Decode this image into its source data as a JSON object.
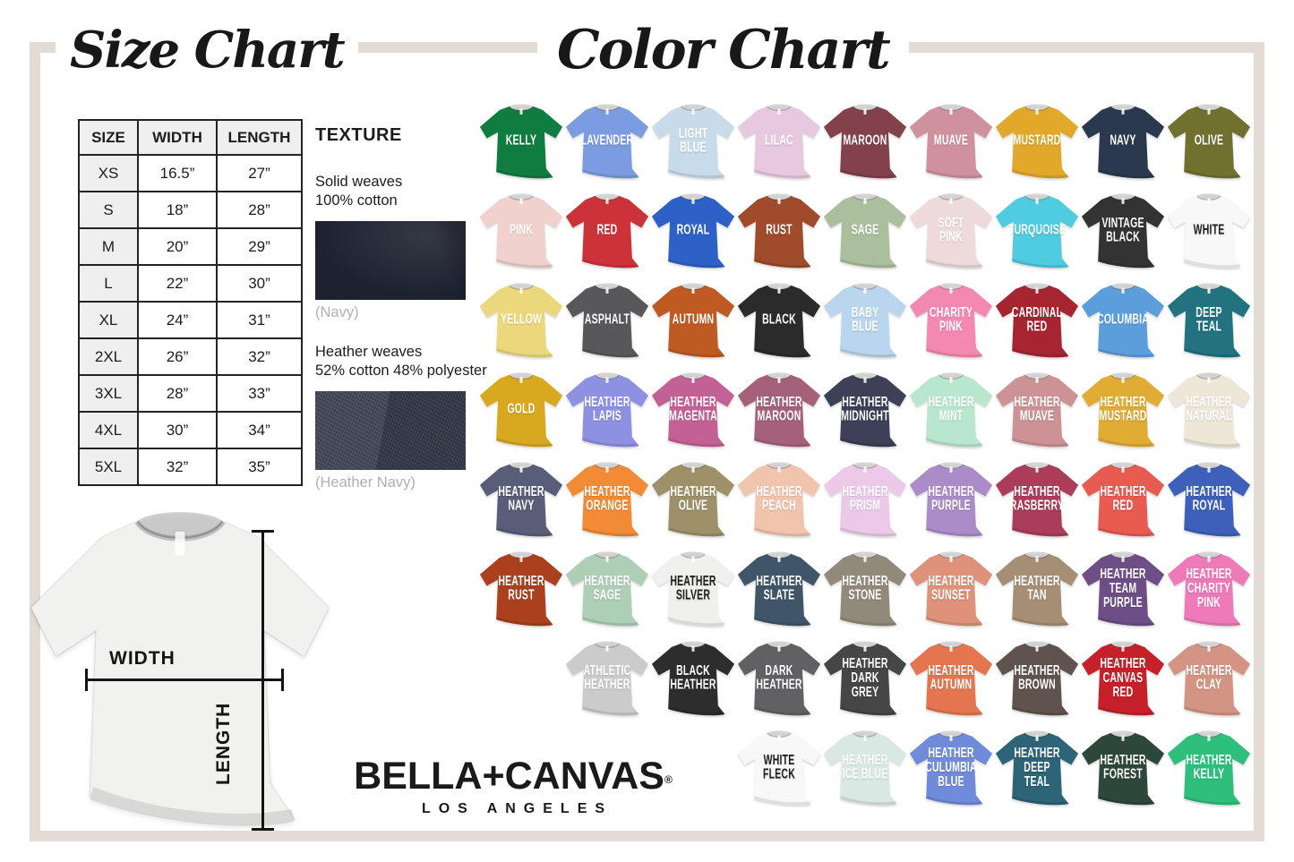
{
  "titles": {
    "size_chart": "Size Chart",
    "color_chart": "Color Chart"
  },
  "frame_color": "#e5dbd5",
  "size_table": {
    "headers": [
      "SIZE",
      "WIDTH",
      "LENGTH"
    ],
    "rows": [
      {
        "size": "XS",
        "width": "16.5”",
        "length": "27”"
      },
      {
        "size": "S",
        "width": "18”",
        "length": "28”"
      },
      {
        "size": "M",
        "width": "20”",
        "length": "29”"
      },
      {
        "size": "L",
        "width": "22”",
        "length": "30”"
      },
      {
        "size": "XL",
        "width": "24”",
        "length": "31”"
      },
      {
        "size": "2XL",
        "width": "26”",
        "length": "32”"
      },
      {
        "size": "3XL",
        "width": "28”",
        "length": "33”"
      },
      {
        "size": "4XL",
        "width": "30”",
        "length": "34”"
      },
      {
        "size": "5XL",
        "width": "32”",
        "length": "35”"
      }
    ]
  },
  "texture": {
    "heading": "TEXTURE",
    "solid": {
      "label": "Solid weaves\n100% cotton",
      "caption": "(Navy)",
      "color": "#1d2230"
    },
    "heather": {
      "label": "Heather weaves\n52% cotton 48% polyester",
      "caption": "(Heather Navy)",
      "color": "#3a4150"
    }
  },
  "measurement": {
    "width_label": "WIDTH",
    "length_label": "LENGTH",
    "shirt_color": "#f1f1ef"
  },
  "brand": {
    "wordmark": "BELLA+CANVAS",
    "reg": "®",
    "subtext": "LOS ANGELES"
  },
  "color_chart": {
    "rows": [
      {
        "items": [
          {
            "name": "KELLY",
            "color": "#0f7c40",
            "text": "#ffffff"
          },
          {
            "name": "LAVENDER",
            "color": "#7b9ce1",
            "text": "#ffffff"
          },
          {
            "name": "LIGHT\nBLUE",
            "color": "#c7dbeb",
            "text": "#ffffff"
          },
          {
            "name": "LILAC",
            "color": "#e7c8e1",
            "text": "#ffffff"
          },
          {
            "name": "MAROON",
            "color": "#82414b",
            "text": "#ffffff"
          },
          {
            "name": "MUAVE",
            "color": "#d0919f",
            "text": "#ffffff"
          },
          {
            "name": "MUSTARD",
            "color": "#e1a829",
            "text": "#ffffff"
          },
          {
            "name": "NAVY",
            "color": "#2b394f",
            "text": "#ffffff"
          },
          {
            "name": "OLIVE",
            "color": "#70712f",
            "text": "#ffffff"
          }
        ]
      },
      {
        "items": [
          {
            "name": "PINK",
            "color": "#f1d1cd",
            "text": "#ffffff"
          },
          {
            "name": "RED",
            "color": "#cb3339",
            "text": "#ffffff"
          },
          {
            "name": "ROYAL",
            "color": "#2e61c8",
            "text": "#ffffff"
          },
          {
            "name": "RUST",
            "color": "#a04b2b",
            "text": "#ffffff"
          },
          {
            "name": "SAGE",
            "color": "#abbf9d",
            "text": "#ffffff"
          },
          {
            "name": "SOFT\nPINK",
            "color": "#eedadb",
            "text": "#ffffff"
          },
          {
            "name": "TURQUOISE",
            "color": "#4fccdf",
            "text": "#ffffff"
          },
          {
            "name": "VINTAGE\nBLACK",
            "color": "#343334",
            "text": "#ffffff"
          },
          {
            "name": "WHITE",
            "color": "#f8f8f8",
            "text": "#1d1d1d"
          }
        ]
      },
      {
        "items": [
          {
            "name": "YELLOW",
            "color": "#ebd87c",
            "text": "#ffffff"
          },
          {
            "name": "ASPHALT",
            "color": "#58575a",
            "text": "#ffffff"
          },
          {
            "name": "AUTUMN",
            "color": "#c05a23",
            "text": "#ffffff"
          },
          {
            "name": "BLACK",
            "color": "#2b2b2b",
            "text": "#ffffff"
          },
          {
            "name": "BABY\nBLUE",
            "color": "#bad5ee",
            "text": "#ffffff"
          },
          {
            "name": "CHARITY\nPINK",
            "color": "#f389b0",
            "text": "#ffffff"
          },
          {
            "name": "CARDINAL\nRED",
            "color": "#a62531",
            "text": "#ffffff"
          },
          {
            "name": "COLUMBIA",
            "color": "#5c9edc",
            "text": "#ffffff"
          },
          {
            "name": "DEEP\nTEAL",
            "color": "#227280",
            "text": "#ffffff"
          }
        ]
      },
      {
        "items": [
          {
            "name": "GOLD",
            "color": "#d8a81f",
            "text": "#ffffff"
          },
          {
            "name": "HEATHER\nLAPIS",
            "color": "#8e90e2",
            "text": "#ffffff"
          },
          {
            "name": "HEATHER\nMAGENTA",
            "color": "#c36197",
            "text": "#ffffff"
          },
          {
            "name": "HEATHER\nMAROON",
            "color": "#a5617a",
            "text": "#ffffff"
          },
          {
            "name": "HEATHER\nMIDNIGHT",
            "color": "#3d4057",
            "text": "#ffffff"
          },
          {
            "name": "HEATHER\nMINT",
            "color": "#b9e7cd",
            "text": "#ffffff"
          },
          {
            "name": "HEATHER\nMUAVE",
            "color": "#cc9295",
            "text": "#ffffff"
          },
          {
            "name": "HEATHER\nMUSTARD",
            "color": "#e0ac34",
            "text": "#ffffff"
          },
          {
            "name": "HEATHER\nNATURAL",
            "color": "#ede7d7",
            "text": "#ffffff"
          }
        ]
      },
      {
        "items": [
          {
            "name": "HEATHER\nNAVY",
            "color": "#585d78",
            "text": "#ffffff"
          },
          {
            "name": "HEATHER\nORANGE",
            "color": "#f18b36",
            "text": "#ffffff"
          },
          {
            "name": "HEATHER\nOLIVE",
            "color": "#9e9068",
            "text": "#ffffff"
          },
          {
            "name": "HEATHER\nPEACH",
            "color": "#f1c4ae",
            "text": "#ffffff"
          },
          {
            "name": "HEATHER\nPRISM",
            "color": "#ecc9e8",
            "text": "#ffffff"
          },
          {
            "name": "HEATHER\nPURPLE",
            "color": "#ab8cc9",
            "text": "#ffffff"
          },
          {
            "name": "HEATHER\nRASBERRY",
            "color": "#ab3d5a",
            "text": "#ffffff"
          },
          {
            "name": "HEATHER\nRED",
            "color": "#e75b51",
            "text": "#ffffff"
          },
          {
            "name": "HEATHER\nROYAL",
            "color": "#3e60ba",
            "text": "#ffffff"
          }
        ]
      },
      {
        "items": [
          {
            "name": "HEATHER\nRUST",
            "color": "#ab401f",
            "text": "#ffffff"
          },
          {
            "name": "HEATHER\nSAGE",
            "color": "#adcfb5",
            "text": "#ffffff"
          },
          {
            "name": "HEATHER\nSILVER",
            "color": "#f0f0ee",
            "text": "#1d1d1d"
          },
          {
            "name": "HEATHER\nSLATE",
            "color": "#415569",
            "text": "#ffffff"
          },
          {
            "name": "HEATHER\nSTONE",
            "color": "#918979",
            "text": "#ffffff"
          },
          {
            "name": "HEATHER\nSUNSET",
            "color": "#dd9279",
            "text": "#ffffff"
          },
          {
            "name": "HEATHER\nTAN",
            "color": "#a68e75",
            "text": "#ffffff"
          },
          {
            "name": "HEATHER\nTEAM\nPURPLE",
            "color": "#6e4e86",
            "text": "#ffffff"
          },
          {
            "name": "HEATHER\nCHARITY\nPINK",
            "color": "#ef7ab9",
            "text": "#ffffff"
          }
        ]
      },
      {
        "items": [
          {
            "name": "ATHLETIC\nHEATHER",
            "color": "#cbcbcb",
            "text": "#ffffff"
          },
          {
            "name": "BLACK\nHEATHER",
            "color": "#2d2d2d",
            "text": "#ffffff"
          },
          {
            "name": "DARK\nHEATHER",
            "color": "#616163",
            "text": "#ffffff"
          },
          {
            "name": "HEATHER\nDARK GREY",
            "color": "#464647",
            "text": "#ffffff"
          },
          {
            "name": "HEATHER\nAUTUMN",
            "color": "#e3764f",
            "text": "#ffffff"
          },
          {
            "name": "HEATHER\nBROWN",
            "color": "#60534d",
            "text": "#ffffff"
          },
          {
            "name": "HEATHER\nCANVAS\nRED",
            "color": "#c6212b",
            "text": "#ffffff"
          },
          {
            "name": "HEATHER\nCLAY",
            "color": "#d39483",
            "text": "#ffffff"
          }
        ]
      },
      {
        "items": [
          {
            "name": "WHITE\nFLECK",
            "color": "#f8f8f8",
            "text": "#1d1d1d"
          },
          {
            "name": "HEATHER\nICE BLUE",
            "color": "#dae8e4",
            "text": "#ffffff"
          },
          {
            "name": "HEATHER\nCULUMBIA\nBLUE",
            "color": "#718bdb",
            "text": "#ffffff"
          },
          {
            "name": "HEATHER\nDEEP\nTEAL",
            "color": "#2d6477",
            "text": "#ffffff"
          },
          {
            "name": "HEATHER\nFOREST",
            "color": "#2d473b",
            "text": "#ffffff"
          },
          {
            "name": "HEATHER\nKELLY",
            "color": "#2fbf7d",
            "text": "#ffffff"
          }
        ]
      }
    ]
  }
}
